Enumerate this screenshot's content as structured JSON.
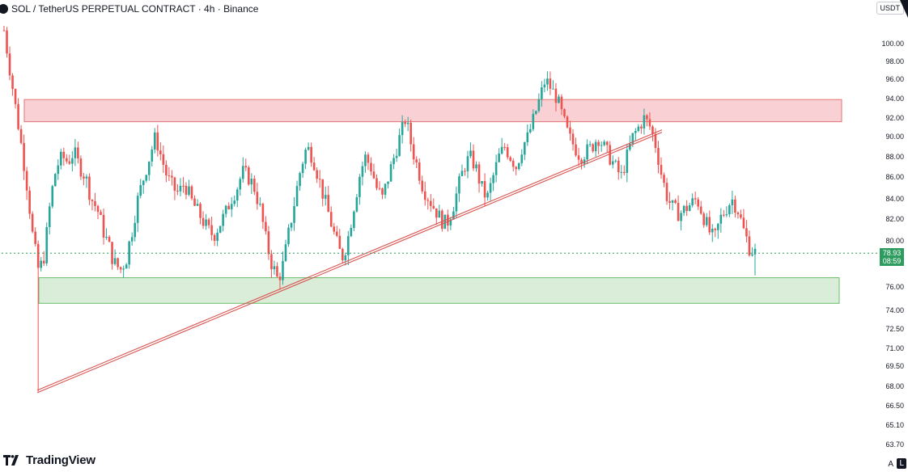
{
  "header": {
    "title": "SOL / TetherUS PERPETUAL CONTRACT · 4h · Binance"
  },
  "axis_currency": "USDT",
  "branding": {
    "logo_text": "TradingView"
  },
  "last_price": {
    "value": "78.93",
    "countdown": "08:59"
  },
  "axis_buttons": [
    "A",
    "L"
  ],
  "colors": {
    "up": "#26a69a",
    "down": "#ef5350",
    "resistance_fill": "#f7c6c9",
    "resistance_stroke": "#e57373",
    "support_fill": "#cfe9cf",
    "support_stroke": "#6cbf6c",
    "trendline": "#d9534f",
    "price_line": "#2e9c5f"
  },
  "chart_data": {
    "type": "candlestick",
    "y_axis_ticks": [
      "100.00",
      "98.00",
      "96.00",
      "94.00",
      "92.00",
      "90.00",
      "88.00",
      "86.00",
      "84.00",
      "82.00",
      "80.00",
      "76.00",
      "74.00",
      "72.50",
      "71.00",
      "69.50",
      "68.00",
      "66.50",
      "65.10",
      "63.70"
    ],
    "y_range": [
      62.5,
      103
    ],
    "zones": [
      {
        "kind": "resistance",
        "low": 91.6,
        "high": 93.9
      },
      {
        "kind": "support",
        "low": 74.6,
        "high": 76.8
      }
    ],
    "trendline": {
      "from": 67.6,
      "to": 90.6
    },
    "last_price": 78.93,
    "close_path": [
      101.5,
      97,
      93,
      89,
      85,
      80,
      77.2,
      79,
      84,
      87,
      88,
      87.5,
      88.5,
      87,
      86,
      84,
      83,
      81,
      79.5,
      78,
      77.5,
      78.5,
      81,
      84,
      86,
      88,
      90,
      88,
      86,
      85,
      84.5,
      85.5,
      84,
      83,
      82,
      81,
      80.5,
      81.5,
      82.5,
      84,
      85,
      86.5,
      86,
      85,
      83,
      80,
      78,
      76.6,
      78,
      81,
      84,
      87,
      89,
      88,
      86,
      84,
      82,
      80,
      78.5,
      80,
      83,
      86,
      88,
      87,
      85,
      84,
      86,
      88,
      90,
      92,
      89,
      87,
      85,
      84,
      83,
      82,
      81.5,
      83,
      85,
      87,
      88,
      87,
      85,
      84,
      86,
      88,
      89,
      88,
      87,
      89,
      90,
      92,
      94,
      96,
      95,
      94,
      92,
      90,
      89,
      88,
      88.5,
      89,
      90,
      89,
      88,
      87,
      86,
      88,
      90,
      91,
      92,
      91,
      89,
      86,
      84,
      83,
      82.5,
      83,
      83.5,
      84,
      82.5,
      81,
      80,
      82,
      83,
      84,
      83,
      81,
      79.5,
      78.93
    ],
    "max_close": 101.5,
    "min_wick": 67.6
  }
}
